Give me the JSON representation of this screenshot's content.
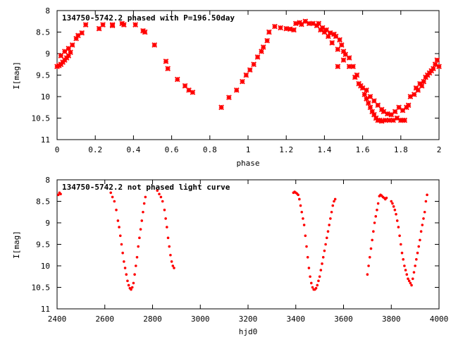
{
  "colors": {
    "points": "#ff0000",
    "axes": "#000000",
    "background": "#ffffff"
  },
  "chart_data": [
    {
      "type": "scatter",
      "title": "134750-5742.2 phased with P=196.50day",
      "xlabel": "phase",
      "ylabel": "I[mag]",
      "xlim": [
        0,
        2
      ],
      "ylim": [
        8,
        11
      ],
      "y_inverted": true,
      "grid": false,
      "x_ticks": [
        "0",
        "0.2",
        "0.4",
        "0.6",
        "0.8",
        "1",
        "1.2",
        "1.4",
        "1.6",
        "1.8",
        "2"
      ],
      "x_tick_values": [
        0,
        0.2,
        0.4,
        0.6,
        0.8,
        1.0,
        1.2,
        1.4,
        1.6,
        1.8,
        2.0
      ],
      "y_ticks": [
        "8",
        "8.5",
        "9",
        "9.5",
        "10",
        "10.5",
        "11"
      ],
      "y_tick_values": [
        8,
        8.5,
        9,
        9.5,
        10,
        10.5,
        11
      ],
      "series": [
        {
          "name": "I",
          "marker": "cross",
          "x": [
            0.0,
            0.01,
            0.02,
            0.03,
            0.04,
            0.05,
            0.06,
            0.07,
            0.02,
            0.04,
            0.06,
            0.08,
            0.1,
            0.11,
            0.13,
            0.15,
            0.22,
            0.24,
            0.29,
            0.29,
            0.34,
            0.35,
            0.41,
            0.45,
            0.46,
            0.51,
            0.57,
            0.58,
            0.63,
            0.67,
            0.69,
            0.71,
            0.86,
            0.9,
            0.94,
            0.97,
            0.99,
            1.01,
            1.03,
            1.05,
            1.07,
            1.08,
            1.1,
            1.11,
            1.14,
            1.17,
            1.2,
            1.22,
            1.24,
            1.25,
            1.27,
            1.28,
            1.3,
            1.32,
            1.34,
            1.36,
            1.37,
            1.38,
            1.39,
            1.4,
            1.41,
            1.42,
            1.43,
            1.44,
            1.45,
            1.46,
            1.47,
            1.48,
            1.49,
            1.5,
            1.51,
            1.53,
            1.55,
            1.57,
            1.59,
            1.61,
            1.62,
            1.63,
            1.64,
            1.65,
            1.66,
            1.67,
            1.68,
            1.69,
            1.7,
            1.72,
            1.74,
            1.76,
            1.78,
            1.8,
            1.81,
            1.82,
            1.47,
            1.5,
            1.53,
            1.56,
            1.58,
            1.6,
            1.62,
            1.64,
            1.66,
            1.68,
            1.7,
            1.71,
            1.73,
            1.75,
            1.77,
            1.79,
            1.81,
            1.83,
            1.84,
            1.85,
            1.87,
            1.88,
            1.89,
            1.9,
            1.91,
            1.92,
            1.93,
            1.94,
            1.95,
            1.96,
            1.97,
            1.98,
            1.99,
            2.0
          ],
          "y": [
            9.3,
            9.28,
            9.25,
            9.2,
            9.15,
            9.1,
            9.05,
            8.97,
            9.05,
            8.95,
            8.88,
            8.8,
            8.65,
            8.58,
            8.52,
            8.33,
            8.42,
            8.33,
            8.33,
            8.35,
            8.3,
            8.33,
            8.33,
            8.47,
            8.5,
            8.8,
            9.18,
            9.35,
            9.6,
            9.75,
            9.85,
            9.9,
            10.25,
            10.02,
            9.85,
            9.65,
            9.5,
            9.38,
            9.25,
            9.08,
            8.95,
            8.85,
            8.7,
            8.5,
            8.37,
            8.4,
            8.42,
            8.43,
            8.45,
            8.3,
            8.28,
            8.32,
            8.25,
            8.3,
            8.3,
            8.35,
            8.3,
            8.45,
            8.4,
            8.5,
            8.45,
            8.6,
            8.52,
            8.75,
            8.55,
            8.6,
            8.9,
            8.68,
            8.8,
            8.95,
            9.02,
            9.1,
            9.3,
            9.5,
            9.75,
            9.95,
            10.05,
            10.15,
            10.25,
            10.35,
            10.42,
            10.5,
            10.55,
            10.55,
            10.57,
            10.55,
            10.55,
            10.55,
            10.5,
            10.55,
            10.55,
            10.55,
            9.3,
            9.15,
            9.3,
            9.55,
            9.7,
            9.8,
            9.85,
            10.0,
            10.1,
            10.2,
            10.3,
            10.35,
            10.4,
            10.42,
            10.35,
            10.25,
            10.32,
            10.25,
            10.2,
            10.0,
            9.95,
            9.8,
            9.85,
            9.7,
            9.75,
            9.65,
            9.55,
            9.5,
            9.45,
            9.4,
            9.35,
            9.25,
            9.15,
            9.3
          ]
        }
      ]
    },
    {
      "type": "scatter",
      "title": "134750-5742.2 not phased light curve",
      "xlabel": "hjd0",
      "ylabel": "I[mag]",
      "xlim": [
        2400,
        4000
      ],
      "ylim": [
        8,
        11
      ],
      "y_inverted": true,
      "grid": false,
      "x_ticks": [
        "2400",
        "2600",
        "2800",
        "3000",
        "3200",
        "3400",
        "3600",
        "3800",
        "4000"
      ],
      "x_tick_values": [
        2400,
        2600,
        2800,
        3000,
        3200,
        3400,
        3600,
        3800,
        4000
      ],
      "y_ticks": [
        "8",
        "8.5",
        "9",
        "9.5",
        "10",
        "10.5",
        "11"
      ],
      "y_tick_values": [
        8,
        8.5,
        9,
        9.5,
        10,
        10.5,
        11
      ],
      "series": [
        {
          "name": "I",
          "marker": "dot",
          "x": [
            2405,
            2410,
            2415,
            2625,
            2632,
            2640,
            2648,
            2655,
            2660,
            2665,
            2670,
            2675,
            2680,
            2685,
            2690,
            2695,
            2700,
            2705,
            2710,
            2715,
            2720,
            2725,
            2730,
            2735,
            2740,
            2745,
            2750,
            2755,
            2760,
            2765,
            2770,
            2820,
            2828,
            2835,
            2842,
            2850,
            2855,
            2860,
            2865,
            2870,
            2875,
            2880,
            2885,
            2890,
            3390,
            3395,
            3400,
            3405,
            3410,
            3415,
            3420,
            3425,
            3430,
            3435,
            3440,
            3445,
            3450,
            3455,
            3460,
            3465,
            3470,
            3475,
            3480,
            3485,
            3490,
            3495,
            3500,
            3505,
            3510,
            3515,
            3520,
            3525,
            3530,
            3535,
            3540,
            3545,
            3550,
            3555,
            3560,
            3565,
            3700,
            3705,
            3710,
            3715,
            3720,
            3725,
            3730,
            3735,
            3740,
            3745,
            3750,
            3755,
            3760,
            3765,
            3770,
            3775,
            3780,
            3800,
            3805,
            3810,
            3815,
            3820,
            3825,
            3830,
            3835,
            3840,
            3845,
            3850,
            3855,
            3860,
            3865,
            3870,
            3875,
            3880,
            3885,
            3890,
            3895,
            3900,
            3905,
            3910,
            3915,
            3920,
            3925,
            3930,
            3935,
            3940,
            3945,
            3950
          ],
          "y": [
            8.35,
            8.3,
            8.33,
            8.3,
            8.4,
            8.5,
            8.7,
            8.95,
            9.1,
            9.3,
            9.5,
            9.7,
            9.9,
            10.05,
            10.2,
            10.35,
            10.45,
            10.52,
            10.55,
            10.5,
            10.4,
            10.2,
            10.0,
            9.8,
            9.55,
            9.35,
            9.15,
            8.95,
            8.75,
            8.55,
            8.4,
            8.25,
            8.33,
            8.4,
            8.5,
            8.7,
            8.9,
            9.1,
            9.35,
            9.55,
            9.75,
            9.9,
            10.0,
            10.05,
            8.3,
            8.28,
            8.3,
            8.32,
            8.35,
            8.45,
            8.6,
            8.75,
            8.9,
            9.05,
            9.3,
            9.55,
            9.8,
            10.05,
            10.25,
            10.4,
            10.5,
            10.55,
            10.55,
            10.52,
            10.45,
            10.35,
            10.25,
            10.1,
            9.95,
            9.8,
            9.65,
            9.5,
            9.35,
            9.2,
            9.05,
            8.9,
            8.75,
            8.6,
            8.5,
            8.45,
            10.2,
            10.0,
            9.8,
            9.6,
            9.4,
            9.2,
            9.0,
            8.85,
            8.7,
            8.55,
            8.38,
            8.35,
            8.37,
            8.4,
            8.42,
            8.45,
            8.42,
            8.5,
            8.55,
            8.62,
            8.7,
            8.8,
            8.95,
            9.1,
            9.3,
            9.5,
            9.7,
            9.85,
            10.0,
            10.1,
            10.2,
            10.3,
            10.35,
            10.4,
            10.45,
            10.3,
            10.15,
            10.0,
            9.85,
            9.7,
            9.55,
            9.4,
            9.2,
            9.05,
            8.9,
            8.75,
            8.5,
            8.35
          ]
        }
      ]
    }
  ]
}
